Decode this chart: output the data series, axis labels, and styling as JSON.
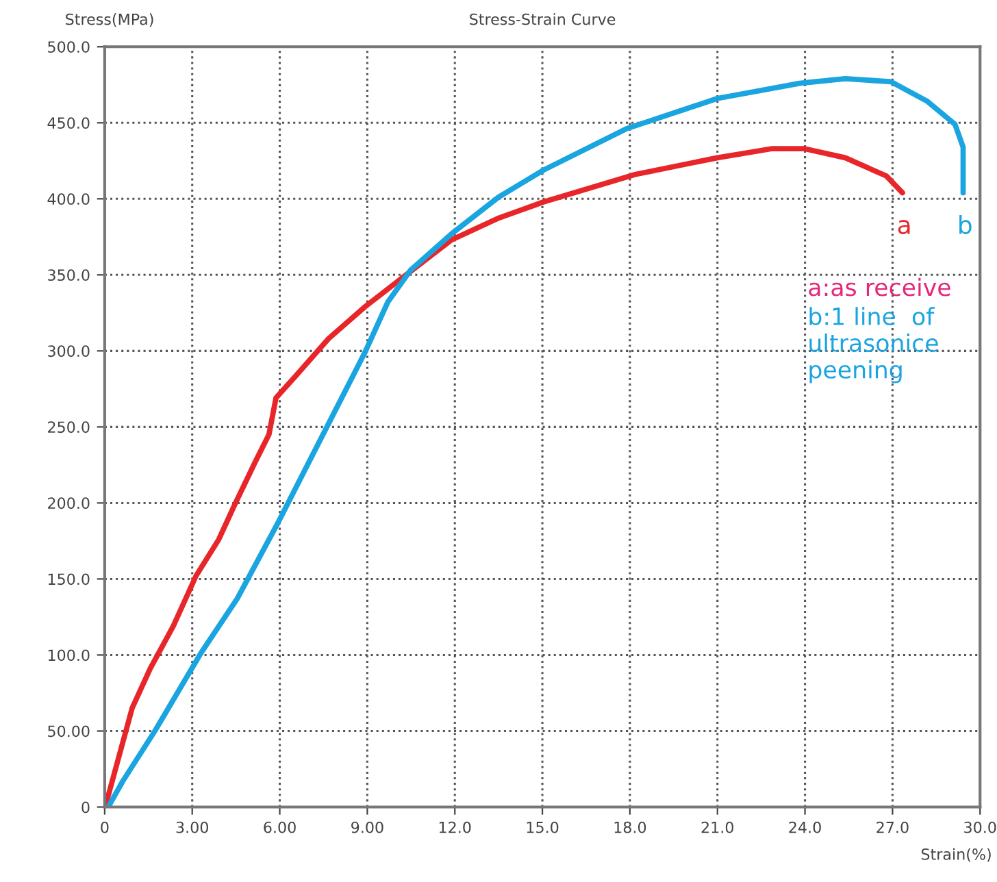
{
  "chart_data": {
    "type": "line",
    "title": "Stress-Strain Curve",
    "xlabel": "Strain(%)",
    "ylabel": "Stress(MPa)",
    "xlim": [
      0,
      30
    ],
    "ylim": [
      0,
      500
    ],
    "xticks": [
      {
        "value": 0,
        "label": "0"
      },
      {
        "value": 3,
        "label": "3.00"
      },
      {
        "value": 6,
        "label": "6.00"
      },
      {
        "value": 9,
        "label": "9.00"
      },
      {
        "value": 12,
        "label": "12.0"
      },
      {
        "value": 15,
        "label": "15.0"
      },
      {
        "value": 18,
        "label": "18.0"
      },
      {
        "value": 21,
        "label": "21.0"
      },
      {
        "value": 24,
        "label": "24.0"
      },
      {
        "value": 27,
        "label": "27.0"
      },
      {
        "value": 30,
        "label": "30.0"
      }
    ],
    "yticks": [
      {
        "value": 0,
        "label": "0"
      },
      {
        "value": 50,
        "label": "50.00"
      },
      {
        "value": 100,
        "label": "100.0"
      },
      {
        "value": 150,
        "label": "150.0"
      },
      {
        "value": 200,
        "label": "200.0"
      },
      {
        "value": 250,
        "label": "250.0"
      },
      {
        "value": 300,
        "label": "300.0"
      },
      {
        "value": 350,
        "label": "350.0"
      },
      {
        "value": 400,
        "label": "400.0"
      },
      {
        "value": 450,
        "label": "450.0"
      },
      {
        "value": 500,
        "label": "500.0"
      }
    ],
    "grid": true,
    "legend": false,
    "marker": "none",
    "line_style": "solid",
    "series": [
      {
        "name": "a",
        "color": "#e8262a",
        "x": [
          0.03,
          0.94,
          1.56,
          2.35,
          3.13,
          3.91,
          4.46,
          5.16,
          5.63,
          5.87,
          6.57,
          7.67,
          8.92,
          10.33,
          11.89,
          13.46,
          15.05,
          18.18,
          21.0,
          22.88,
          23.97,
          25.38,
          26.79,
          27.34
        ],
        "values": [
          1,
          65,
          91,
          119,
          152,
          176,
          199,
          227,
          245,
          269,
          284,
          308,
          329,
          350,
          373,
          387,
          398,
          416,
          427,
          433,
          433,
          427,
          415,
          404
        ]
      },
      {
        "name": "b",
        "color": "#1aa5e0",
        "x": [
          0.15,
          0.62,
          1.72,
          3.29,
          4.54,
          5.94,
          7.35,
          8.92,
          9.7,
          10.48,
          11.89,
          13.49,
          15.05,
          17.87,
          21.0,
          23.82,
          25.38,
          26.95,
          28.2,
          29.14,
          29.42,
          29.42
        ],
        "values": [
          1,
          17,
          50,
          101,
          137,
          187,
          240,
          299,
          332,
          353,
          377,
          401,
          419,
          446,
          466,
          476,
          479,
          477,
          464,
          449,
          434,
          404
        ]
      }
    ],
    "annotations": [
      "a:as receive",
      "b:1 line  of ultrasonice peening"
    ]
  }
}
